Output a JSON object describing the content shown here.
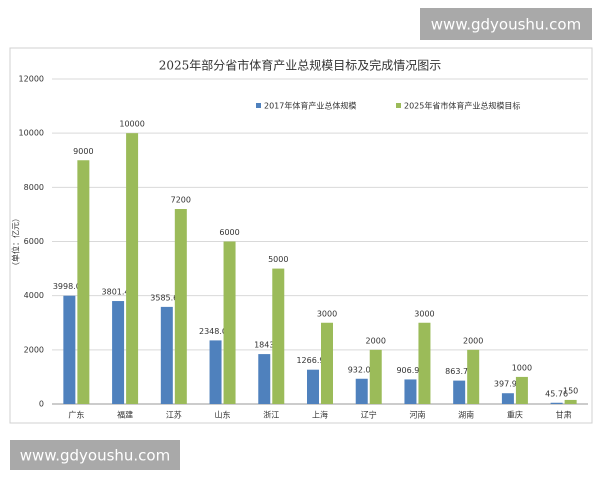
{
  "chart_data": {
    "type": "bar",
    "title": "2025年部分省市体育产业总规模目标及完成情况图示",
    "y_label": "（单位：亿元）",
    "categories": [
      "广东",
      "福建",
      "江苏",
      "山东",
      "浙江",
      "上海",
      "辽宁",
      "河南",
      "湖南",
      "重庆",
      "甘肃"
    ],
    "series": [
      {
        "name": "2017年体育产业总体规模",
        "color": "#4f81bd",
        "values": [
          3998.03,
          3801.41,
          3585.64,
          2348.01,
          1843,
          1266.93,
          932.09,
          906.99,
          863.74,
          397.91,
          45.76
        ]
      },
      {
        "name": "2025年省市体育产业总规模目标",
        "color": "#9bbb59",
        "values": [
          9000,
          10000,
          7200,
          6000,
          5000,
          3000,
          2000,
          3000,
          2000,
          1000,
          150
        ]
      }
    ],
    "ylim": [
      0,
      12000
    ],
    "yticks": [
      0,
      2000,
      4000,
      6000,
      8000,
      10000,
      12000
    ],
    "grid": true,
    "watermarks": [
      "www.gdyoushu.com",
      "www.gdyoushu.com"
    ]
  }
}
